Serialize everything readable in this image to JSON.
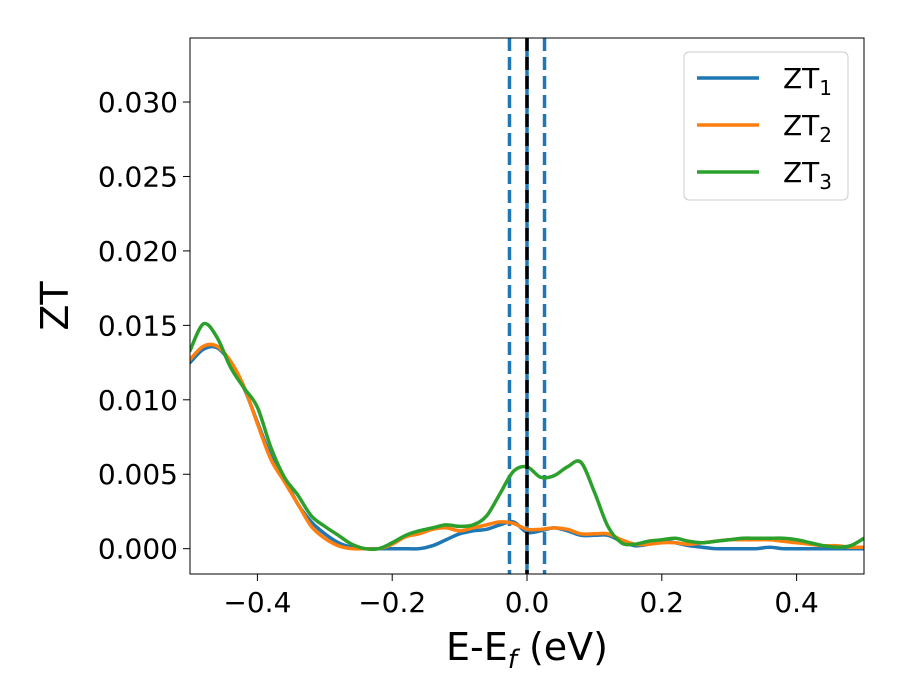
{
  "chart_data": {
    "type": "line",
    "xlabel": {
      "base": "E-E",
      "sub": "f",
      "suffix": " (eV)"
    },
    "ylabel": "ZT",
    "xlim": [
      -0.5,
      0.5
    ],
    "ylim": [
      -0.0017,
      0.0343
    ],
    "xticks": [
      -0.4,
      -0.2,
      0.0,
      0.2,
      0.4
    ],
    "xtick_labels": [
      "−0.4",
      "−0.2",
      "0.0",
      "0.2",
      "0.4"
    ],
    "yticks": [
      0.0,
      0.005,
      0.01,
      0.015,
      0.02,
      0.025,
      0.03
    ],
    "ytick_labels": [
      "0.000",
      "0.005",
      "0.010",
      "0.015",
      "0.020",
      "0.025",
      "0.030"
    ],
    "grid": false,
    "legend_position": "top-right",
    "vlines": [
      {
        "x": -0.026,
        "style": "dashed",
        "color": "#1f77b4"
      },
      {
        "x": 0.0,
        "style": "solid",
        "color": "#1f77b4"
      },
      {
        "x": 0.0,
        "style": "dashed",
        "color": "#000000"
      },
      {
        "x": 0.026,
        "style": "dashed",
        "color": "#1f77b4"
      }
    ],
    "series": [
      {
        "name": "ZT",
        "name_sub": "1",
        "color": "#1f77b4",
        "x": [
          -0.5,
          -0.48,
          -0.46,
          -0.44,
          -0.42,
          -0.4,
          -0.38,
          -0.36,
          -0.34,
          -0.32,
          -0.3,
          -0.28,
          -0.26,
          -0.24,
          -0.22,
          -0.2,
          -0.18,
          -0.16,
          -0.14,
          -0.12,
          -0.1,
          -0.08,
          -0.06,
          -0.04,
          -0.02,
          0.0,
          0.02,
          0.04,
          0.06,
          0.08,
          0.1,
          0.12,
          0.14,
          0.16,
          0.18,
          0.2,
          0.22,
          0.24,
          0.26,
          0.28,
          0.3,
          0.32,
          0.34,
          0.36,
          0.38,
          0.4,
          0.42,
          0.44,
          0.46,
          0.48,
          0.5
        ],
        "y": [
          0.0125,
          0.0134,
          0.0135,
          0.0125,
          0.0108,
          0.0085,
          0.0062,
          0.0047,
          0.003,
          0.0018,
          0.001,
          0.0004,
          0.0001,
          0.0,
          0.0,
          0.0,
          0.0,
          0.0,
          0.0002,
          0.0006,
          0.001,
          0.0012,
          0.0013,
          0.0016,
          0.0018,
          0.0011,
          0.0012,
          0.0014,
          0.0012,
          0.0009,
          0.0009,
          0.0009,
          0.0005,
          0.0002,
          0.0003,
          0.0005,
          0.0004,
          0.0002,
          0.0001,
          0.0,
          0.0,
          0.0,
          0.0,
          0.0001,
          0.0,
          0.0,
          0.0,
          0.0,
          0.0,
          0.0,
          0.0
        ]
      },
      {
        "name": "ZT",
        "name_sub": "2",
        "color": "#ff7f0e",
        "x": [
          -0.5,
          -0.48,
          -0.46,
          -0.44,
          -0.42,
          -0.4,
          -0.38,
          -0.36,
          -0.34,
          -0.32,
          -0.3,
          -0.28,
          -0.26,
          -0.24,
          -0.22,
          -0.2,
          -0.18,
          -0.16,
          -0.14,
          -0.12,
          -0.1,
          -0.08,
          -0.06,
          -0.04,
          -0.02,
          0.0,
          0.02,
          0.04,
          0.06,
          0.08,
          0.1,
          0.12,
          0.14,
          0.16,
          0.18,
          0.2,
          0.22,
          0.24,
          0.26,
          0.28,
          0.3,
          0.32,
          0.34,
          0.36,
          0.38,
          0.4,
          0.42,
          0.44,
          0.46,
          0.48,
          0.5
        ],
        "y": [
          0.0127,
          0.0136,
          0.0136,
          0.0126,
          0.0109,
          0.0084,
          0.006,
          0.0045,
          0.003,
          0.0015,
          0.0007,
          0.0002,
          0.0,
          0.0,
          0.0,
          0.0003,
          0.0008,
          0.001,
          0.0013,
          0.0014,
          0.0012,
          0.0014,
          0.0016,
          0.0018,
          0.0017,
          0.0013,
          0.0013,
          0.0014,
          0.0013,
          0.001,
          0.001,
          0.001,
          0.0006,
          0.0003,
          0.0003,
          0.0004,
          0.0004,
          0.0003,
          0.0004,
          0.0005,
          0.0006,
          0.0006,
          0.0006,
          0.0006,
          0.0005,
          0.0004,
          0.0003,
          0.0002,
          0.0002,
          0.0001,
          0.0001
        ]
      },
      {
        "name": "ZT",
        "name_sub": "3",
        "color": "#2ca02c",
        "x": [
          -0.5,
          -0.48,
          -0.46,
          -0.44,
          -0.42,
          -0.4,
          -0.38,
          -0.36,
          -0.34,
          -0.32,
          -0.3,
          -0.28,
          -0.26,
          -0.24,
          -0.22,
          -0.2,
          -0.18,
          -0.16,
          -0.14,
          -0.12,
          -0.1,
          -0.08,
          -0.06,
          -0.04,
          -0.02,
          0.0,
          0.02,
          0.04,
          0.06,
          0.08,
          0.1,
          0.12,
          0.14,
          0.16,
          0.18,
          0.2,
          0.22,
          0.24,
          0.26,
          0.28,
          0.3,
          0.32,
          0.34,
          0.36,
          0.38,
          0.4,
          0.42,
          0.44,
          0.46,
          0.48,
          0.5
        ],
        "y": [
          0.0133,
          0.0151,
          0.0142,
          0.0122,
          0.0108,
          0.0095,
          0.0068,
          0.0048,
          0.0036,
          0.0022,
          0.0015,
          0.0009,
          0.0003,
          0.0,
          0.0,
          0.0004,
          0.0009,
          0.0012,
          0.0014,
          0.0016,
          0.0015,
          0.0016,
          0.0022,
          0.0037,
          0.0052,
          0.0055,
          0.0048,
          0.0049,
          0.0055,
          0.0058,
          0.0038,
          0.0015,
          0.0004,
          0.0003,
          0.0005,
          0.0006,
          0.0007,
          0.0005,
          0.0004,
          0.0005,
          0.0006,
          0.0007,
          0.0007,
          0.0007,
          0.0007,
          0.0006,
          0.0004,
          0.0002,
          0.0001,
          0.0002,
          0.0007
        ]
      }
    ]
  }
}
